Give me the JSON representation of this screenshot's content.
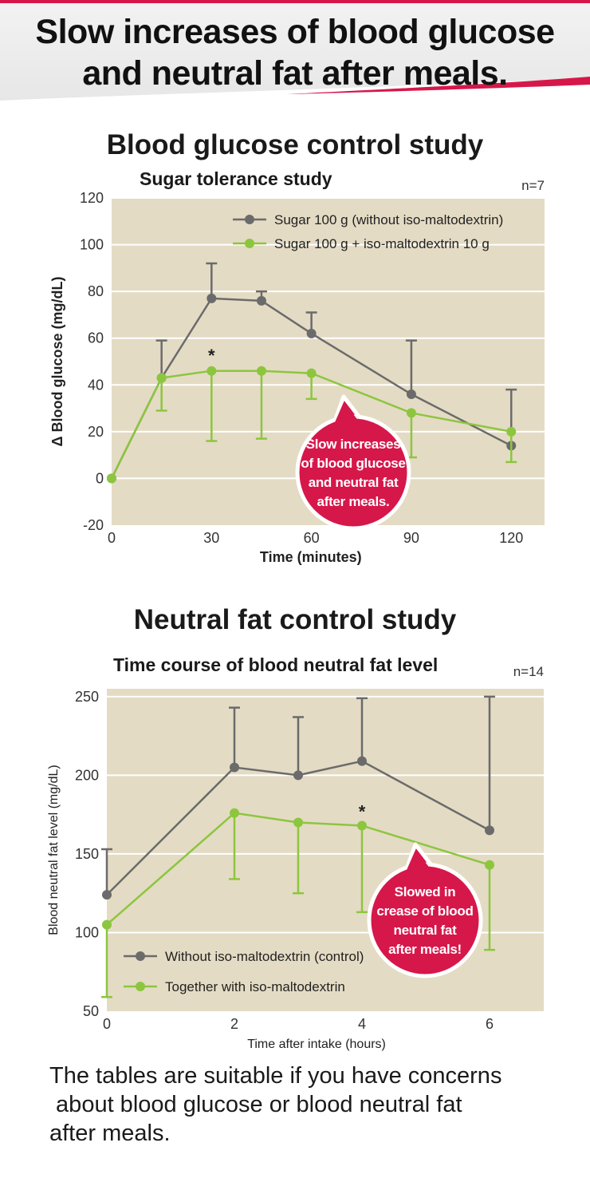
{
  "header": {
    "line1": "Slow increases of blood glucose",
    "line2": "and neutral fat after meals.",
    "accent_color": "#d6174a"
  },
  "colors": {
    "control": "#6b6b6b",
    "treated": "#8cc63f",
    "plot_bg": "#e4dbc4",
    "bubble": "#d6174a"
  },
  "glucose_section": {
    "title": "Blood glucose control study",
    "bubble_lines": [
      "Slow increases",
      "of blood glucose",
      "and neutral fat",
      "after meals."
    ]
  },
  "fat_section": {
    "title": "Neutral fat control study",
    "bubble_lines": [
      "Slowed in",
      "crease of blood",
      "neutral fat",
      "after meals!"
    ]
  },
  "chart_data": [
    {
      "type": "line",
      "title": "Sugar tolerance study",
      "n_label": "n=7",
      "xlabel": "Time (minutes)",
      "ylabel": "Δ Blood glucose (mg/dL)",
      "xlim": [
        0,
        130
      ],
      "ylim": [
        -20,
        120
      ],
      "xticks": [
        0,
        30,
        60,
        90,
        120
      ],
      "yticks": [
        -20,
        0,
        20,
        40,
        60,
        80,
        100,
        120
      ],
      "grid": true,
      "legend_position": "top-right",
      "series": [
        {
          "name": "Sugar 100 g (without iso-maltodextrin)",
          "role": "control",
          "x": [
            0,
            15,
            30,
            45,
            60,
            90,
            120
          ],
          "y": [
            0,
            43,
            77,
            76,
            62,
            36,
            14
          ],
          "error_up": [
            null,
            59,
            92,
            80,
            71,
            59,
            38
          ],
          "error_down": [
            null,
            null,
            null,
            null,
            null,
            null,
            null
          ]
        },
        {
          "name": "Sugar 100 g + iso-maltodextrin 10 g",
          "role": "treated",
          "x": [
            0,
            15,
            30,
            45,
            60,
            90,
            120
          ],
          "y": [
            0,
            43,
            46,
            46,
            45,
            28,
            20
          ],
          "error_up": [
            null,
            null,
            null,
            null,
            null,
            null,
            null
          ],
          "error_down": [
            null,
            29,
            16,
            17,
            34,
            9,
            7
          ]
        }
      ],
      "annotations": [
        {
          "text": "*",
          "x": 30,
          "y": 50
        }
      ]
    },
    {
      "type": "line",
      "title": "Time course of blood neutral fat level",
      "n_label": "n=14",
      "xlabel": "Time after intake (hours)",
      "ylabel": "Blood neutral fat level (mg/dL)",
      "xlim": [
        0,
        6.85
      ],
      "ylim": [
        50,
        255
      ],
      "xticks": [
        0,
        2,
        4,
        6
      ],
      "yticks": [
        50,
        100,
        150,
        200,
        250
      ],
      "grid": true,
      "legend_position": "bottom-left",
      "series": [
        {
          "name": "Without iso-maltodextrin (control)",
          "role": "control",
          "x": [
            0,
            2,
            3,
            4,
            6
          ],
          "y": [
            124,
            205,
            200,
            209,
            165
          ],
          "error_up": [
            153,
            243,
            237,
            249,
            250
          ],
          "error_down": [
            null,
            null,
            null,
            null,
            null
          ]
        },
        {
          "name": "Together with iso-maltodextrin",
          "role": "treated",
          "x": [
            0,
            2,
            3,
            4,
            6
          ],
          "y": [
            105,
            176,
            170,
            168,
            143
          ],
          "error_up": [
            null,
            null,
            null,
            null,
            null
          ],
          "error_down": [
            59,
            134,
            125,
            113,
            89
          ]
        }
      ],
      "annotations": [
        {
          "text": "*",
          "x": 4,
          "y": 173
        }
      ]
    }
  ],
  "footer": {
    "lines": [
      "The tables are suitable if you have concerns",
      " about blood glucose or blood neutral fat",
      "after meals."
    ]
  }
}
